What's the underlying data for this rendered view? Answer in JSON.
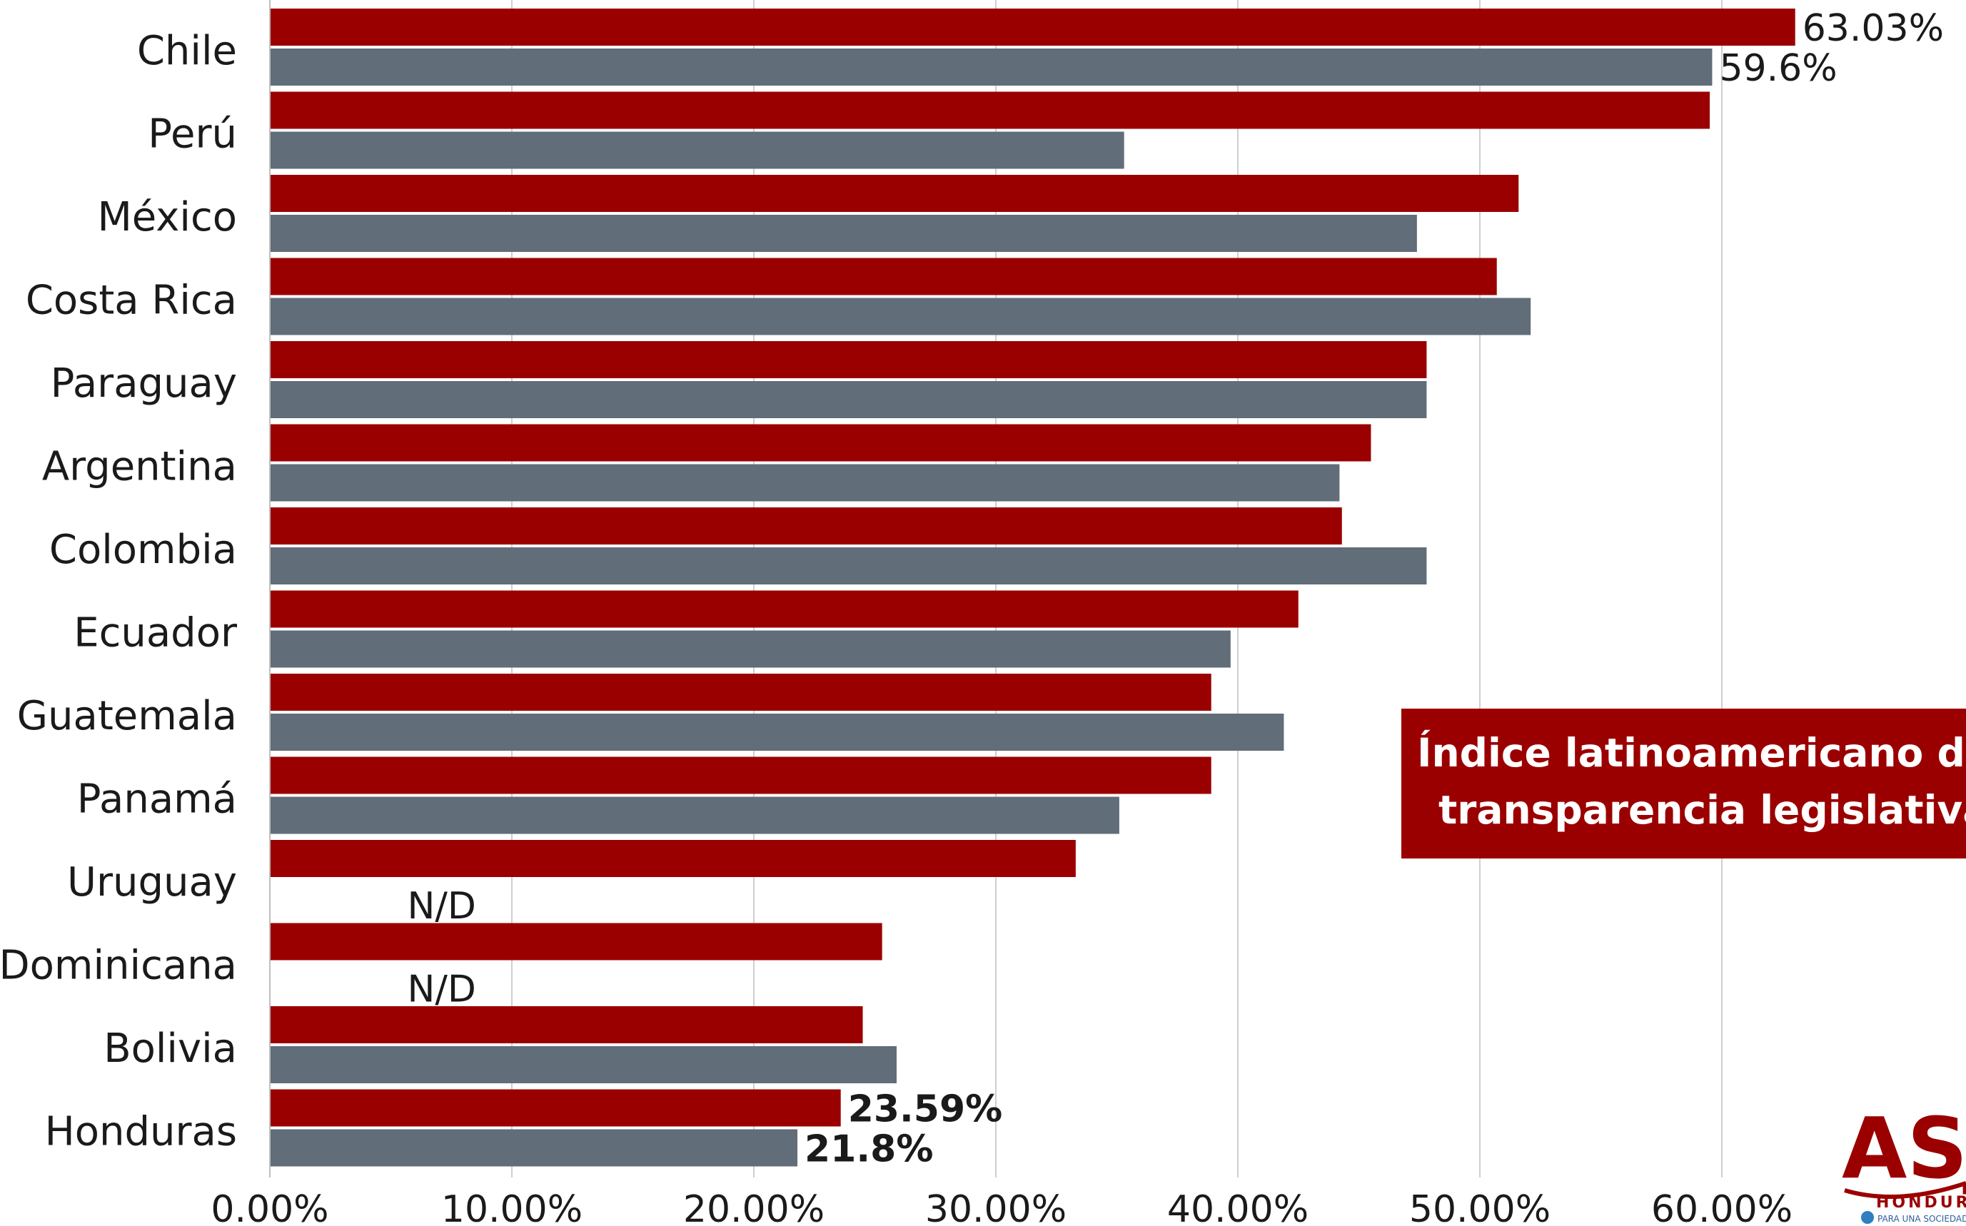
{
  "chart_data": {
    "type": "bar",
    "orientation": "horizontal",
    "categories": [
      "Chile",
      "Perú",
      "México",
      "Costa Rica",
      "Paraguay",
      "Argentina",
      "Colombia",
      "Ecuador",
      "Guatemala",
      "Panamá",
      "Uruguay",
      "Dominicana",
      "Bolivia",
      "Honduras"
    ],
    "series": [
      {
        "color": "#9b0000",
        "values": [
          63.03,
          59.5,
          51.6,
          50.7,
          47.8,
          45.5,
          44.3,
          42.5,
          38.9,
          38.9,
          33.3,
          25.3,
          24.5,
          23.59
        ]
      },
      {
        "color": "#616d79",
        "values": [
          59.6,
          35.3,
          47.4,
          52.1,
          47.8,
          44.2,
          47.8,
          39.7,
          41.9,
          35.1,
          null,
          null,
          25.9,
          21.8
        ]
      }
    ],
    "data_labels": [
      {
        "category": "Chile",
        "series": 0,
        "text": "63.03%",
        "bold": false
      },
      {
        "category": "Chile",
        "series": 1,
        "text": "59.6%",
        "bold": false
      },
      {
        "category": "Uruguay",
        "series": 1,
        "text": "N/D",
        "bold": false
      },
      {
        "category": "Dominicana",
        "series": 1,
        "text": "N/D",
        "bold": false
      },
      {
        "category": "Honduras",
        "series": 0,
        "text": "23.59%",
        "bold": true
      },
      {
        "category": "Honduras",
        "series": 1,
        "text": "21.8%",
        "bold": true
      }
    ],
    "x_ticks": [
      "0.00%",
      "10.00%",
      "20.00%",
      "30.00%",
      "40.00%",
      "50.00%",
      "60.00%"
    ],
    "xlim": [
      0,
      70
    ],
    "grid": "vertical",
    "title_lines": [
      "Índice latinoamericano de",
      "transparencia legislativa"
    ],
    "logo_text": "ASJ",
    "logo_subtext": "HONDURAS",
    "logo_tagline": "PARA UNA SOCIEDAD MÁS JUSTA"
  }
}
